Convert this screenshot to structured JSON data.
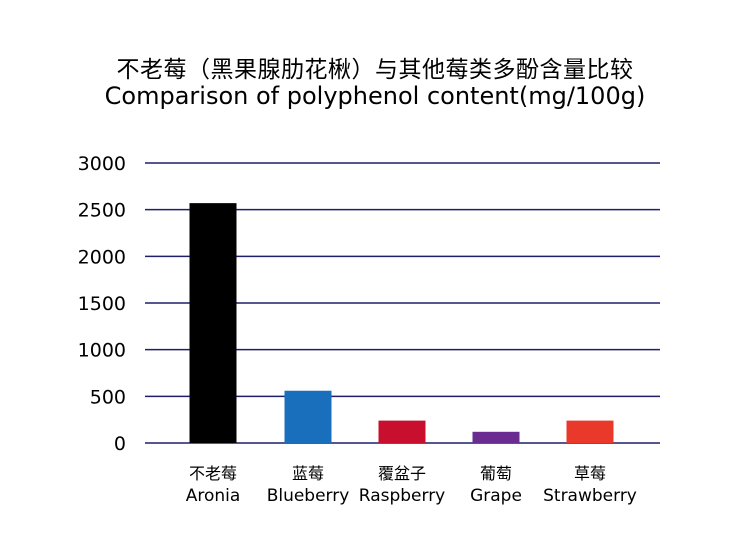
{
  "chart_data": {
    "type": "bar",
    "title": "不老莓（黑果腺肋花楸）与其他莓类多酚含量比较",
    "subtitle": "Comparison of polyphenol content(mg/100g)",
    "xlabel": "",
    "ylabel": "",
    "ylim": [
      0,
      3000
    ],
    "yticks": [
      0,
      500,
      1000,
      1500,
      2000,
      2500,
      3000
    ],
    "grid": true,
    "legend": "none",
    "categories": [
      {
        "cn": "不老莓",
        "en": "Aronia"
      },
      {
        "cn": "蓝莓",
        "en": "Blueberry"
      },
      {
        "cn": "覆盆子",
        "en": "Raspberry"
      },
      {
        "cn": "葡萄",
        "en": "Grape"
      },
      {
        "cn": "草莓",
        "en": "Strawberry"
      }
    ],
    "values": [
      2570,
      560,
      240,
      120,
      240
    ],
    "colors": [
      "#000000",
      "#1a6fbd",
      "#c8102e",
      "#6a2c91",
      "#e8392b"
    ],
    "grid_color": "#1f1f6b"
  }
}
